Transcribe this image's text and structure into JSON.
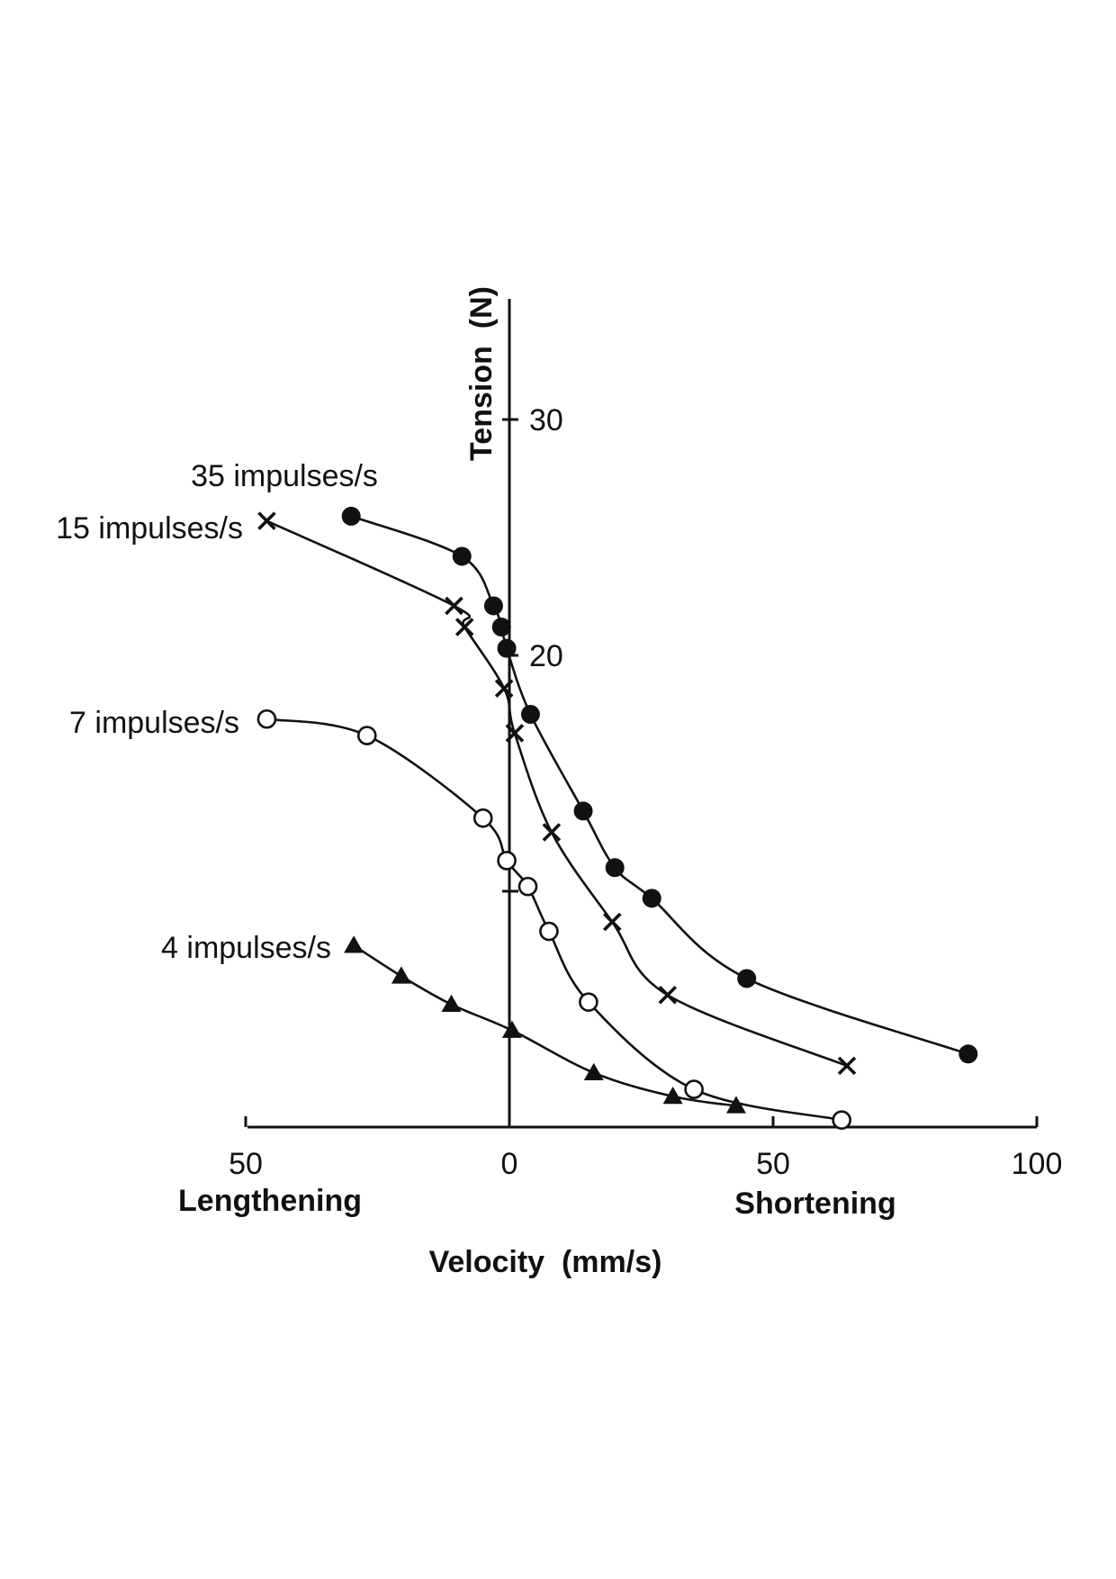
{
  "chart_data": {
    "type": "scatter",
    "title": "",
    "xlabel": "Velocity  (mm/s)",
    "ylabel": "Tension  (N)",
    "x_side_labels": {
      "left": "Lengthening",
      "right": "Shortening"
    },
    "xlim": [
      -50,
      100
    ],
    "ylim": [
      0,
      35
    ],
    "x_ticks": [
      {
        "value": -50,
        "label": "50"
      },
      {
        "value": 0,
        "label": "0"
      },
      {
        "value": 50,
        "label": "50"
      },
      {
        "value": 100,
        "label": "100"
      }
    ],
    "y_ticks": [
      {
        "value": 10,
        "label": ""
      },
      {
        "value": 20,
        "label": "20"
      },
      {
        "value": 30,
        "label": "30"
      }
    ],
    "grid": false,
    "legend": "none",
    "series": [
      {
        "name": "35 impulses/s",
        "marker": "filled-circle",
        "points": [
          [
            -30,
            25.9
          ],
          [
            -9,
            24.2
          ],
          [
            -3,
            22.1
          ],
          [
            -1.5,
            21.2
          ],
          [
            -0.5,
            20.3
          ],
          [
            4,
            17.5
          ],
          [
            14,
            13.4
          ],
          [
            20,
            11.0
          ],
          [
            27,
            9.7
          ],
          [
            45,
            6.3
          ],
          [
            87,
            3.1
          ]
        ]
      },
      {
        "name": "15 impulses/s",
        "marker": "cross",
        "points": [
          [
            -46,
            25.7
          ],
          [
            -10.5,
            22.1
          ],
          [
            -8.5,
            21.2
          ],
          [
            -1,
            18.6
          ],
          [
            1,
            16.7
          ],
          [
            8,
            12.5
          ],
          [
            19.5,
            8.7
          ],
          [
            30,
            5.6
          ],
          [
            64,
            2.6
          ]
        ]
      },
      {
        "name": "7 impulses/s",
        "marker": "open-circle",
        "points": [
          [
            -46,
            17.3
          ],
          [
            -27,
            16.6
          ],
          [
            -5,
            13.1
          ],
          [
            -0.5,
            11.3
          ],
          [
            3.5,
            10.2
          ],
          [
            7.5,
            8.3
          ],
          [
            15,
            5.3
          ],
          [
            35,
            1.6
          ],
          [
            63,
            0.3
          ]
        ]
      },
      {
        "name": "4 impulses/s",
        "marker": "filled-triangle",
        "points": [
          [
            -29.5,
            7.7
          ],
          [
            -20.5,
            6.4
          ],
          [
            -11,
            5.2
          ],
          [
            0.5,
            4.1
          ],
          [
            16,
            2.3
          ],
          [
            31,
            1.3
          ],
          [
            43,
            0.9
          ]
        ]
      }
    ]
  }
}
